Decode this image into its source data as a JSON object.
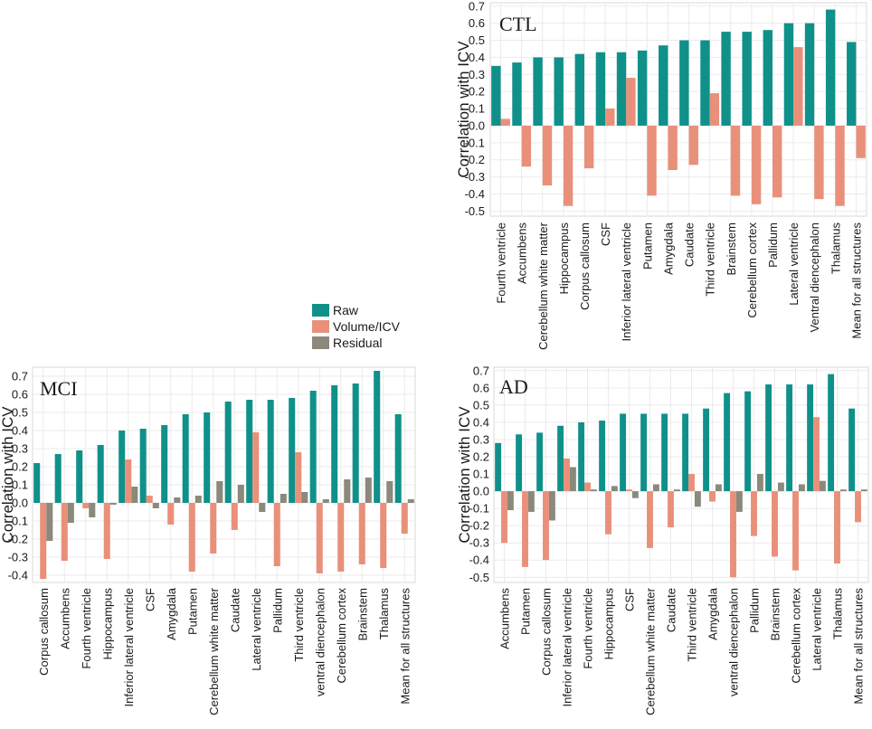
{
  "colors": {
    "raw": "#0f918a",
    "volume_icv": "#e9907a",
    "residual": "#8b887c",
    "grid": "#ebebeb",
    "panel_border": "#d9d9d9"
  },
  "legend": {
    "items": [
      "Raw",
      "Volume/ICV",
      "Residual"
    ]
  },
  "chart_data": [
    {
      "type": "bar",
      "title": "CTL",
      "xlabel": "",
      "ylabel": "Correlation with ICV",
      "ylim": [
        -0.53,
        0.72
      ],
      "yticks": [
        0.7,
        0.6,
        0.5,
        0.4,
        0.3,
        0.2,
        0.1,
        0.0,
        -0.1,
        -0.2,
        -0.3,
        -0.4,
        -0.5
      ],
      "ytick_labels": [
        "0.7",
        "0.6",
        "0.5",
        "0.4",
        "0.3",
        "0.2",
        "0.1",
        "0.0",
        "-0.1",
        "-0.2",
        "-0.3",
        "-0.4",
        "-0.5"
      ],
      "categories": [
        "Fourth ventricle",
        "Accumbens",
        "Cerebellum white matter",
        "Hippocampus",
        "Corpus callosum",
        "CSF",
        "Inferior lateral ventricle",
        "Putamen",
        "Amygdala",
        "Caudate",
        "Third ventricle",
        "Brainstem",
        "Cerebellum cortex",
        "Pallidum",
        "Lateral ventricle",
        "Ventral diencephalon",
        "Thalamus",
        "Mean for all structures"
      ],
      "series": [
        {
          "name": "Raw",
          "values": [
            0.35,
            0.37,
            0.4,
            0.4,
            0.42,
            0.43,
            0.43,
            0.44,
            0.47,
            0.5,
            0.5,
            0.55,
            0.55,
            0.56,
            0.6,
            0.6,
            0.68,
            0.49
          ]
        },
        {
          "name": "Volume/ICV",
          "values": [
            0.04,
            -0.24,
            -0.35,
            -0.47,
            -0.25,
            0.1,
            0.28,
            -0.41,
            -0.26,
            -0.23,
            0.19,
            -0.41,
            -0.46,
            -0.42,
            0.46,
            -0.43,
            -0.47,
            -0.19
          ]
        }
      ]
    },
    {
      "type": "bar",
      "title": "MCI",
      "xlabel": "",
      "ylabel": "Correlation with ICV",
      "ylim": [
        -0.44,
        0.75
      ],
      "yticks": [
        0.7,
        0.6,
        0.5,
        0.4,
        0.3,
        0.2,
        0.1,
        0.0,
        -0.1,
        -0.2,
        -0.3,
        -0.4
      ],
      "ytick_labels": [
        "0.7",
        "0.6",
        "0.5",
        "0.4",
        "0.3",
        "0.2",
        "0.1",
        "0.0",
        "-0.1",
        "-0.2",
        "-0.3",
        "-0.4"
      ],
      "categories": [
        "Corpus callosum",
        "Accumbens",
        "Fourth ventricle",
        "Hippocampus",
        "Inferior lateral ventricle",
        "CSF",
        "Amygdala",
        "Putamen",
        "Cerebellum white matter",
        "Caudate",
        "Lateral ventricle",
        "Pallidum",
        "Third ventricle",
        "ventral diencephalon",
        "Cerebellum cortex",
        "Brainstem",
        "Thalamus",
        "Mean for all structures"
      ],
      "series": [
        {
          "name": "Raw",
          "values": [
            0.22,
            0.27,
            0.29,
            0.32,
            0.4,
            0.41,
            0.43,
            0.49,
            0.5,
            0.56,
            0.57,
            0.57,
            0.58,
            0.62,
            0.65,
            0.66,
            0.73,
            0.49
          ]
        },
        {
          "name": "Volume/ICV",
          "values": [
            -0.42,
            -0.32,
            -0.03,
            -0.31,
            0.24,
            0.04,
            -0.12,
            -0.38,
            -0.28,
            -0.15,
            0.39,
            -0.35,
            0.28,
            -0.39,
            -0.38,
            -0.34,
            -0.36,
            -0.17
          ]
        },
        {
          "name": "Residual",
          "values": [
            -0.21,
            -0.11,
            -0.08,
            -0.01,
            0.09,
            -0.03,
            0.03,
            0.04,
            0.12,
            0.1,
            -0.05,
            0.05,
            0.06,
            0.02,
            0.13,
            0.14,
            0.12,
            0.02
          ]
        }
      ]
    },
    {
      "type": "bar",
      "title": "AD",
      "xlabel": "",
      "ylabel": "Correlation with ICV",
      "ylim": [
        -0.53,
        0.72
      ],
      "yticks": [
        0.7,
        0.6,
        0.5,
        0.4,
        0.3,
        0.2,
        0.1,
        0.0,
        -0.1,
        -0.2,
        -0.3,
        -0.4,
        -0.5
      ],
      "ytick_labels": [
        "0.7",
        "0.6",
        "0.5",
        "0.4",
        "0.3",
        "0.2",
        "0.1",
        "0.0",
        "-0.1",
        "-0.2",
        "-0.3",
        "-0.4",
        "-0.5"
      ],
      "categories": [
        "Accumbens",
        "Putamen",
        "Corpus callosum",
        "Inferior lateral ventricle",
        "Fourth ventricle",
        "Hippocampus",
        "CSF",
        "Cerebellum white matter",
        "Caudate",
        "Third ventricle",
        "Amygdala",
        "ventral diencephalon",
        "Pallidum",
        "Brainstem",
        "Cerebellum cortex",
        "Lateral ventricle",
        "Thalamus",
        "Mean for all structures"
      ],
      "series": [
        {
          "name": "Raw",
          "values": [
            0.28,
            0.33,
            0.34,
            0.38,
            0.4,
            0.41,
            0.45,
            0.45,
            0.45,
            0.45,
            0.48,
            0.57,
            0.58,
            0.62,
            0.62,
            0.62,
            0.68,
            0.48
          ]
        },
        {
          "name": "Volume/ICV",
          "values": [
            -0.3,
            -0.44,
            -0.4,
            0.19,
            0.05,
            -0.25,
            0.01,
            -0.33,
            -0.21,
            0.1,
            -0.06,
            -0.5,
            -0.26,
            -0.38,
            -0.46,
            0.43,
            -0.42,
            -0.18
          ]
        },
        {
          "name": "Residual",
          "values": [
            -0.11,
            -0.12,
            -0.17,
            0.14,
            0.01,
            0.03,
            -0.04,
            0.04,
            0.01,
            -0.09,
            0.04,
            -0.12,
            0.1,
            0.05,
            0.04,
            0.06,
            0.01,
            0.01
          ]
        }
      ]
    }
  ]
}
